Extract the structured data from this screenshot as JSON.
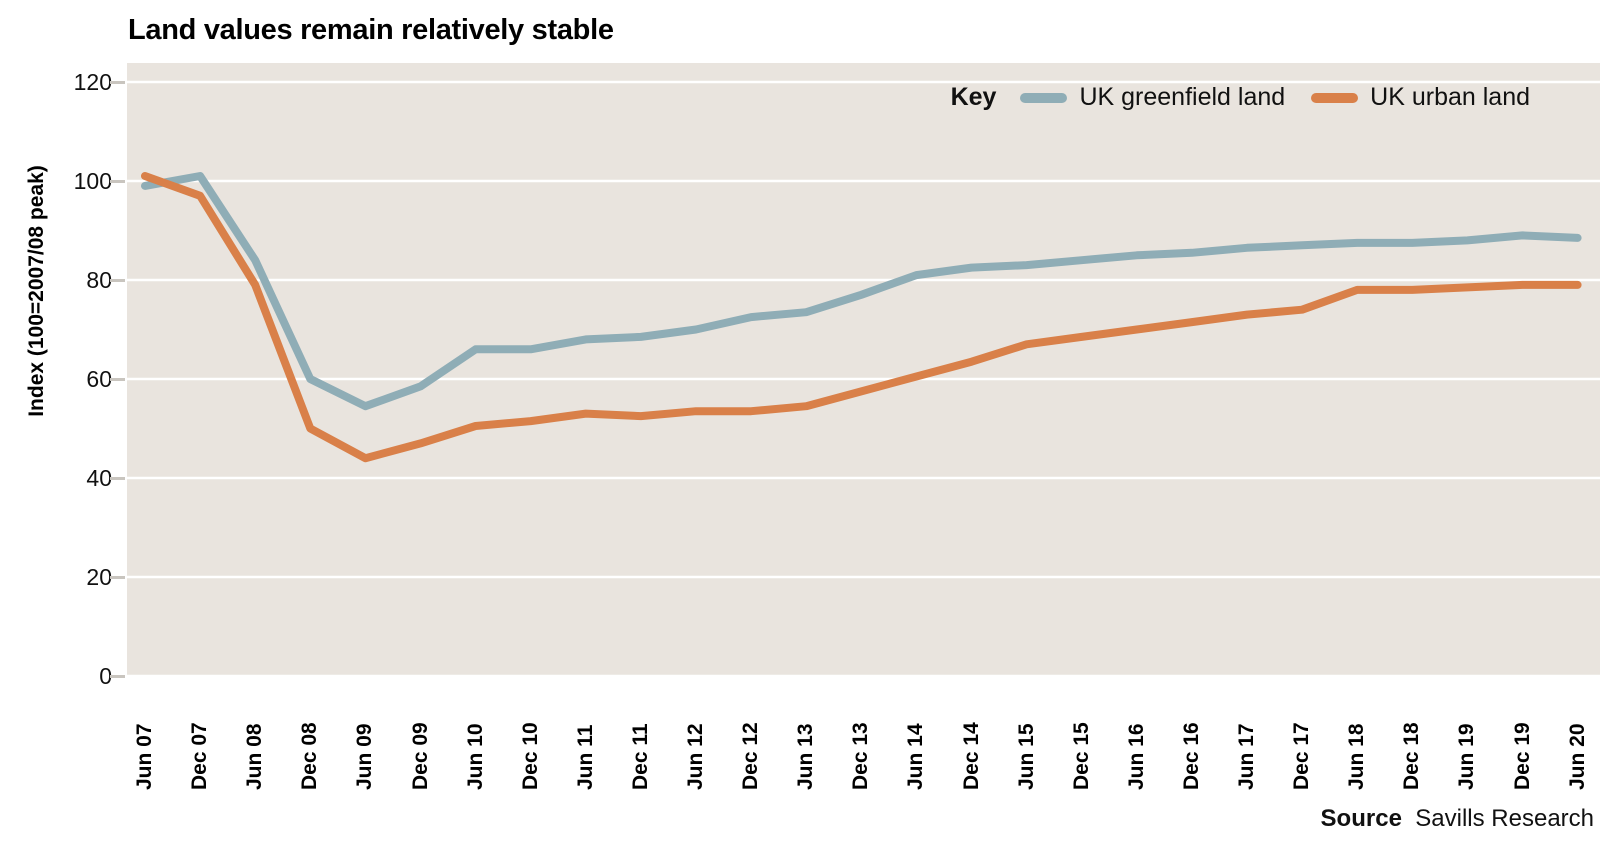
{
  "chart_data": {
    "type": "line",
    "title": "Land values remain relatively stable",
    "xlabel": "",
    "ylabel": "Index (100=2007/08 peak)",
    "ylim": [
      0,
      120
    ],
    "yticks": [
      0,
      20,
      40,
      60,
      80,
      100,
      120
    ],
    "grid": true,
    "plot_background": "#e9e4de",
    "gridline_color": "#ffffff",
    "legend_label": "Key",
    "legend_position": "top-right",
    "categories": [
      "Jun 07",
      "Dec 07",
      "Jun 08",
      "Dec 08",
      "Jun 09",
      "Dec 09",
      "Jun 10",
      "Dec 10",
      "Jun 11",
      "Dec 11",
      "Jun 12",
      "Dec 12",
      "Jun 13",
      "Dec 13",
      "Jun 14",
      "Dec 14",
      "Jun 15",
      "Dec 15",
      "Jun 16",
      "Dec 16",
      "Jun 17",
      "Dec 17",
      "Jun 18",
      "Dec 18",
      "Jun 19",
      "Dec 19",
      "Jun 20"
    ],
    "series": [
      {
        "name": "UK greenfield land",
        "color": "#8fadb6",
        "values": [
          99,
          101,
          84,
          60,
          54.5,
          58.5,
          66,
          66,
          68,
          68.5,
          70,
          72.5,
          73.5,
          77,
          81,
          82.5,
          83,
          84,
          85,
          85.5,
          86.5,
          87,
          87.5,
          87.5,
          88,
          89,
          88.5
        ]
      },
      {
        "name": "UK urban land",
        "color": "#d98049",
        "values": [
          101,
          97,
          79,
          50,
          44,
          47,
          50.5,
          51.5,
          53,
          52.5,
          53.5,
          53.5,
          54.5,
          57.5,
          60.5,
          63.5,
          67,
          68.5,
          70,
          71.5,
          73,
          74,
          78,
          78,
          78.5,
          79,
          79
        ]
      }
    ]
  },
  "source": {
    "label": "Source",
    "text": "Savills Research"
  }
}
